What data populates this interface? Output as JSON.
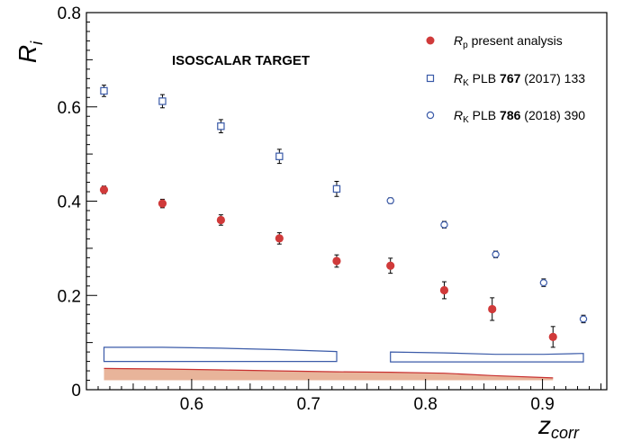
{
  "chart_data": {
    "type": "scatter",
    "annotation": "ISOSCALAR TARGET",
    "xlabel": {
      "main": "z",
      "sub": "corr"
    },
    "ylabel": {
      "main": "R",
      "sub": "i"
    },
    "xlim": [
      0.51,
      0.955
    ],
    "ylim": [
      0.0,
      0.8
    ],
    "x_ticks": [
      0.6,
      0.7,
      0.8,
      0.9
    ],
    "x_tick_labels": [
      "0.6",
      "0.7",
      "0.8",
      "0.9"
    ],
    "y_ticks": [
      0.0,
      0.2,
      0.4,
      0.6,
      0.8
    ],
    "y_tick_labels": [
      "0",
      "0.2",
      "0.4",
      "0.6",
      "0.8"
    ],
    "legend_position": "top-right",
    "series": [
      {
        "id": "rp",
        "legend": {
          "sym": "R",
          "sub": "p",
          "rest": " present analysis"
        },
        "marker": "filled-circle",
        "color": "#d03a3a",
        "points": [
          {
            "x": 0.525,
            "y": 0.424,
            "err": 0.008
          },
          {
            "x": 0.575,
            "y": 0.395,
            "err": 0.009
          },
          {
            "x": 0.625,
            "y": 0.36,
            "err": 0.011
          },
          {
            "x": 0.675,
            "y": 0.321,
            "err": 0.012
          },
          {
            "x": 0.724,
            "y": 0.273,
            "err": 0.013
          },
          {
            "x": 0.77,
            "y": 0.263,
            "err": 0.016
          },
          {
            "x": 0.816,
            "y": 0.211,
            "err": 0.018
          },
          {
            "x": 0.857,
            "y": 0.171,
            "err": 0.024
          },
          {
            "x": 0.909,
            "y": 0.112,
            "err": 0.022
          }
        ]
      },
      {
        "id": "rk2017",
        "legend": {
          "sym": "R",
          "sub": "K",
          "pre": " PLB ",
          "bold": "767",
          "post": " (2017) 133"
        },
        "marker": "open-square",
        "color": "#3a5aa8",
        "points": [
          {
            "x": 0.525,
            "y": 0.634,
            "err": 0.012
          },
          {
            "x": 0.575,
            "y": 0.612,
            "err": 0.014
          },
          {
            "x": 0.625,
            "y": 0.559,
            "err": 0.014
          },
          {
            "x": 0.675,
            "y": 0.495,
            "err": 0.015
          },
          {
            "x": 0.724,
            "y": 0.426,
            "err": 0.016
          }
        ]
      },
      {
        "id": "rk2018",
        "legend": {
          "sym": "R",
          "sub": "K",
          "pre": " PLB ",
          "bold": "786",
          "post": " (2018) 390"
        },
        "marker": "open-circle",
        "color": "#3a5aa8",
        "points": [
          {
            "x": 0.77,
            "y": 0.401,
            "err": 0.006
          },
          {
            "x": 0.816,
            "y": 0.35,
            "err": 0.007
          },
          {
            "x": 0.86,
            "y": 0.287,
            "err": 0.007
          },
          {
            "x": 0.901,
            "y": 0.227,
            "err": 0.008
          },
          {
            "x": 0.935,
            "y": 0.15,
            "err": 0.008
          }
        ]
      }
    ],
    "systematic_bands": [
      {
        "id": "rk2017-sys",
        "style": "open",
        "color": "#3a5aa8",
        "x": [
          0.525,
          0.575,
          0.625,
          0.675,
          0.724
        ],
        "lower": [
          0.06,
          0.06,
          0.06,
          0.06,
          0.06
        ],
        "upper": [
          0.09,
          0.09,
          0.088,
          0.085,
          0.081
        ]
      },
      {
        "id": "rk2018-sys",
        "style": "open",
        "color": "#3a5aa8",
        "x": [
          0.77,
          0.816,
          0.86,
          0.901,
          0.935
        ],
        "lower": [
          0.059,
          0.059,
          0.059,
          0.059,
          0.059
        ],
        "upper": [
          0.08,
          0.078,
          0.075,
          0.075,
          0.077
        ]
      },
      {
        "id": "rp-sys",
        "style": "filled",
        "color": "#c83030",
        "fill": "#e8b49a",
        "x": [
          0.525,
          0.575,
          0.625,
          0.675,
          0.724,
          0.77,
          0.816,
          0.857,
          0.909
        ],
        "lower": [
          0.02,
          0.02,
          0.02,
          0.02,
          0.02,
          0.02,
          0.02,
          0.02,
          0.02
        ],
        "upper": [
          0.045,
          0.044,
          0.042,
          0.04,
          0.038,
          0.037,
          0.035,
          0.03,
          0.025
        ]
      }
    ]
  }
}
